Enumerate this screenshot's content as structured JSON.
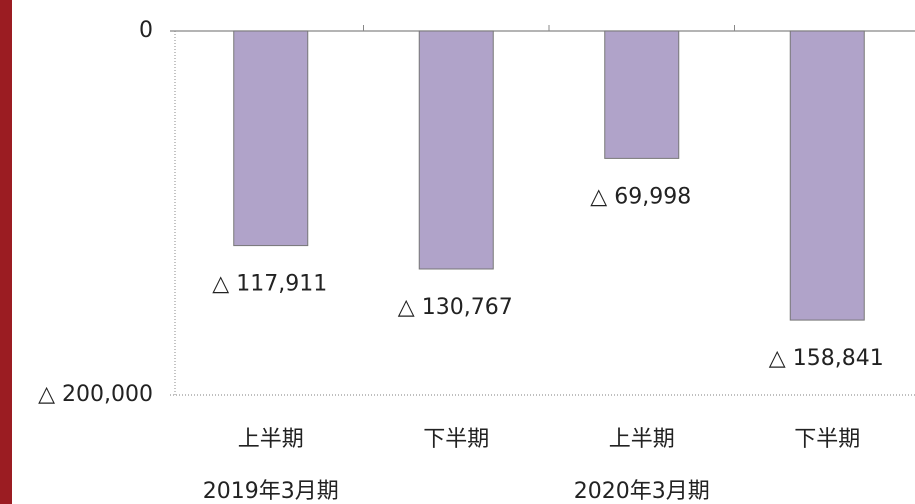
{
  "chart_data": {
    "type": "bar",
    "categories": [
      "上半期",
      "下半期",
      "上半期",
      "下半期"
    ],
    "values": [
      -117911,
      -130767,
      -69998,
      -158841
    ],
    "value_labels": [
      "△ 117,911",
      "△ 130,767",
      "△ 69,998",
      "△ 158,841"
    ],
    "groups": [
      {
        "label": "2019年3月期",
        "start": 0
      },
      {
        "label": "2020年3月期",
        "start": 2
      }
    ],
    "color": "#b0a3c9",
    "ylim": [
      -200000,
      0
    ],
    "yticks": [
      0,
      {
        "value": -200000,
        "label": "△ 200,000"
      }
    ]
  }
}
